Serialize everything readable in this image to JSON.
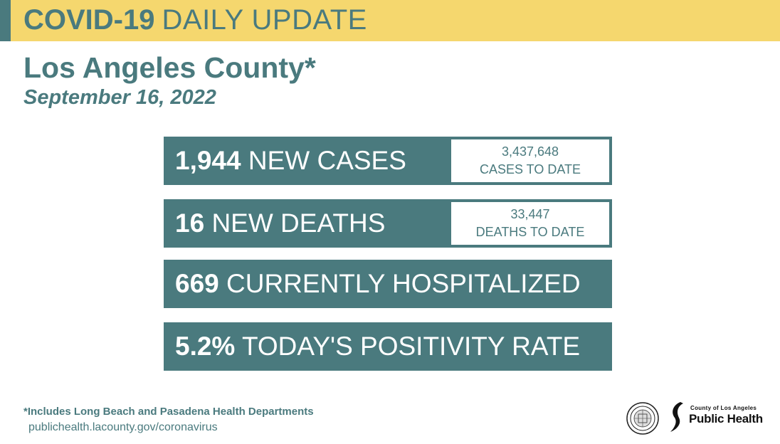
{
  "banner": {
    "title_bold": "COVID-19",
    "title_light": "DAILY UPDATE"
  },
  "location": {
    "county": "Los Angeles County*",
    "date": "September 16, 2022"
  },
  "stats": {
    "new_cases": {
      "number": "1,944",
      "label": "NEW CASES",
      "todate_number": "3,437,648",
      "todate_label": "CASES TO DATE"
    },
    "new_deaths": {
      "number": "16",
      "label": "NEW DEATHS",
      "todate_number": "33,447",
      "todate_label": "DEATHS TO DATE"
    },
    "hospitalized": {
      "number": "669",
      "label": "CURRENTLY HOSPITALIZED"
    },
    "positivity": {
      "number": "5.2%",
      "label": "TODAY'S POSITIVITY RATE"
    }
  },
  "footer": {
    "footnote": "*Includes Long Beach and Pasadena Health Departments",
    "url": "publichealth.lacounty.gov/coronavirus",
    "logo_small": "County of Los Angeles",
    "logo_big": "Public Health"
  },
  "colors": {
    "teal": "#4a7a7e",
    "yellow": "#f5d76e",
    "white": "#ffffff"
  }
}
